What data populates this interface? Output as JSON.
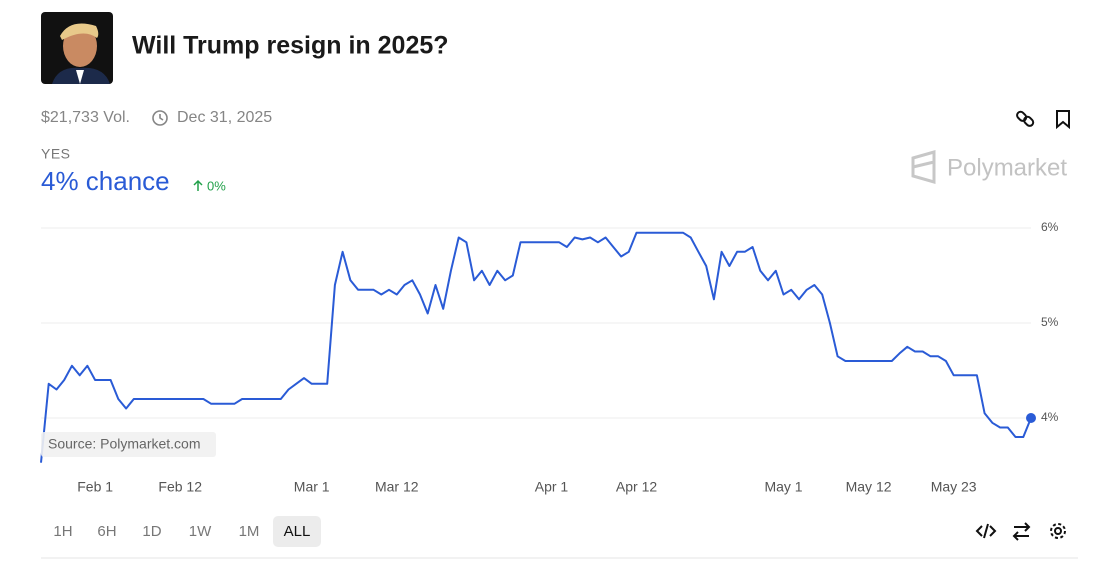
{
  "header": {
    "title": "Will Trump resign in 2025?",
    "volume": "$21,733 Vol.",
    "end_date": "Dec 31, 2025",
    "outcome": "YES",
    "chance": "4% chance",
    "change": "0%",
    "brand": "Polymarket"
  },
  "chart_data": {
    "type": "line",
    "color": "#2a5bd6",
    "source": "Source: Polymarket.com",
    "x": [
      "Jan 25",
      "Jan 26",
      "Jan 27",
      "Jan 28",
      "Jan 29",
      "Jan 30",
      "Jan 31",
      "Feb 1",
      "Feb 3",
      "Feb 4",
      "Feb 5",
      "Feb 6",
      "Feb 15",
      "Feb 16",
      "Feb 19",
      "Feb 20",
      "Feb 25",
      "Feb 26",
      "Feb 27",
      "Feb 28",
      "Mar 1",
      "Mar 3",
      "Mar 4",
      "Mar 5",
      "Mar 6",
      "Mar 7",
      "Mar 9",
      "Mar 10",
      "Mar 11",
      "Mar 12",
      "Mar 13",
      "Mar 14",
      "Mar 15",
      "Mar 16",
      "Mar 17",
      "Mar 18",
      "Mar 19",
      "Mar 20",
      "Mar 21",
      "Mar 22",
      "Mar 23",
      "Mar 24",
      "Mar 25",
      "Mar 26",
      "Mar 27",
      "Mar 28",
      "Apr 2",
      "Apr 3",
      "Apr 4",
      "Apr 5",
      "Apr 6",
      "Apr 7",
      "Apr 8",
      "Apr 9",
      "Apr 10",
      "Apr 11",
      "Apr 12",
      "Apr 18",
      "Apr 19",
      "Apr 20",
      "Apr 21",
      "Apr 22",
      "Apr 23",
      "Apr 24",
      "Apr 25",
      "Apr 26",
      "Apr 27",
      "Apr 28",
      "Apr 29",
      "Apr 30",
      "May 1",
      "May 2",
      "May 3",
      "May 4",
      "May 5",
      "May 6",
      "May 7",
      "May 8",
      "May 9",
      "May 15",
      "May 16",
      "May 17",
      "May 18",
      "May 19",
      "May 20",
      "May 21",
      "May 22",
      "May 23",
      "May 26",
      "May 27",
      "May 28",
      "May 29",
      "May 30",
      "May 31",
      "Jun 1",
      "Jun 2"
    ],
    "values": [
      3.53,
      4.36,
      4.3,
      4.4,
      4.55,
      4.45,
      4.55,
      4.4,
      4.4,
      4.2,
      4.1,
      4.2,
      4.2,
      4.15,
      4.15,
      4.2,
      4.2,
      4.3,
      4.36,
      4.42,
      4.36,
      4.36,
      5.4,
      5.75,
      5.45,
      5.35,
      5.35,
      5.3,
      5.35,
      5.3,
      5.4,
      5.45,
      5.3,
      5.1,
      5.4,
      5.15,
      5.55,
      5.9,
      5.85,
      5.45,
      5.55,
      5.4,
      5.55,
      5.45,
      5.5,
      5.85,
      5.85,
      5.8,
      5.9,
      5.88,
      5.9,
      5.85,
      5.9,
      5.8,
      5.7,
      5.75,
      5.95,
      5.95,
      5.9,
      5.75,
      5.6,
      5.25,
      5.75,
      5.6,
      5.75,
      5.75,
      5.8,
      5.55,
      5.45,
      5.55,
      5.3,
      5.35,
      5.25,
      5.35,
      5.4,
      5.3,
      5.0,
      4.65,
      4.6,
      4.6,
      4.68,
      4.75,
      4.7,
      4.7,
      4.65,
      4.65,
      4.6,
      4.45,
      4.45,
      4.05,
      3.95,
      3.9,
      3.9,
      3.8,
      3.8,
      4.0
    ],
    "xlim": [
      "Jan 25",
      "Jun 2"
    ],
    "xticks": [
      "Feb 1",
      "Feb 12",
      "Mar 1",
      "Mar 12",
      "Apr 1",
      "Apr 12",
      "May 1",
      "May 12",
      "May 23"
    ],
    "ylim": [
      3.5,
      6
    ],
    "yticks": [
      {
        "value": 4,
        "label": "4%"
      },
      {
        "value": 5,
        "label": "5%"
      },
      {
        "value": 6,
        "label": "6%"
      }
    ],
    "grid": true
  },
  "ranges": [
    "1H",
    "6H",
    "1D",
    "1W",
    "1M",
    "ALL"
  ]
}
